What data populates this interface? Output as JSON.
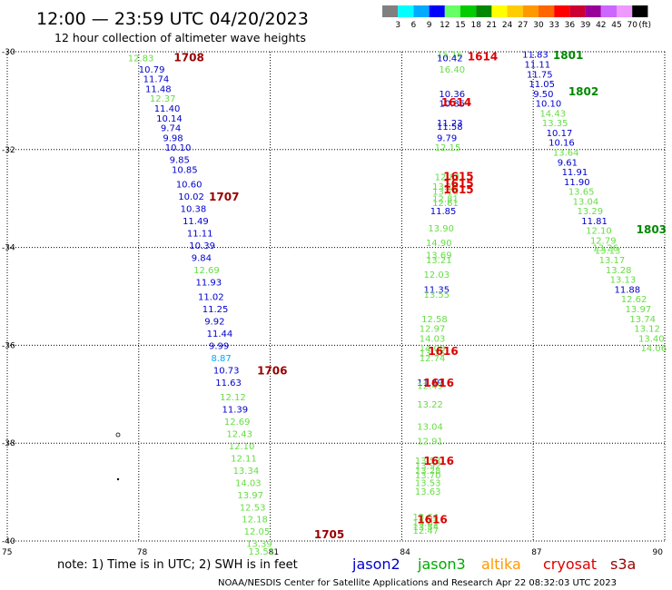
{
  "header": {
    "title": "12:00  —  23:59  UTC  04/20/2023",
    "subtitle": "12 hour collection of altimeter wave heights"
  },
  "color_scale": {
    "labels": [
      "3",
      "6",
      "9",
      "12",
      "15",
      "18",
      "21",
      "24",
      "27",
      "30",
      "33",
      "36",
      "39",
      "42",
      "45",
      "70"
    ],
    "unit": "(ft)",
    "colors": [
      "#808080",
      "#00ffff",
      "#00aaff",
      "#0000ff",
      "#66ff66",
      "#00cc00",
      "#008800",
      "#ffff00",
      "#ffcc00",
      "#ff9900",
      "#ff6600",
      "#ff0000",
      "#cc0033",
      "#990099",
      "#cc66ff",
      "#ee99ff",
      "#000000"
    ]
  },
  "footer": {
    "note": "note:  1)  Time is in UTC;  2)  SWH is in feet",
    "credit": "NOAA/NESDIS  Center  for  Satellite  Applications  and  Research     Apr 22 08:32:03 UTC 2023",
    "missions": [
      {
        "name": "jason2",
        "color": "#0000cc"
      },
      {
        "name": "jason3",
        "color": "#00aa00"
      },
      {
        "name": "altika",
        "color": "#ff9900"
      },
      {
        "name": "cryosat",
        "color": "#dd0000"
      },
      {
        "name": "s3a",
        "color": "#990000"
      }
    ]
  },
  "chart_data": {
    "type": "scatter",
    "title": "12 hour collection of altimeter wave heights",
    "x_ticks": [
      "75",
      "78",
      "81",
      "84",
      "87",
      "90"
    ],
    "y_ticks": [
      "-30",
      "-32",
      "-34",
      "-36",
      "-38",
      "-40"
    ],
    "xlim": [
      75,
      90
    ],
    "ylim": [
      -40,
      -30
    ],
    "grid": true,
    "pass_labels": [
      {
        "text": "1708",
        "lon": 78.8,
        "lat": -30.1,
        "color": "#990000"
      },
      {
        "text": "1707",
        "lon": 79.6,
        "lat": -32.95,
        "color": "#990000"
      },
      {
        "text": "1706",
        "lon": 80.7,
        "lat": -36.5,
        "color": "#990000"
      },
      {
        "text": "1705",
        "lon": 82.0,
        "lat": -39.85,
        "color": "#990000"
      },
      {
        "text": "1614",
        "lon": 85.5,
        "lat": -30.08,
        "color": "#dd0000"
      },
      {
        "text": "1614",
        "lon": 84.9,
        "lat": -31.02,
        "color": "#dd0000"
      },
      {
        "text": "1615",
        "lon": 84.95,
        "lat": -32.53,
        "color": "#dd0000"
      },
      {
        "text": "1615",
        "lon": 84.95,
        "lat": -32.68,
        "color": "#dd0000"
      },
      {
        "text": "1615",
        "lon": 84.95,
        "lat": -32.8,
        "color": "#dd0000"
      },
      {
        "text": "1616",
        "lon": 84.6,
        "lat": -36.1,
        "color": "#dd0000"
      },
      {
        "text": "1616",
        "lon": 84.5,
        "lat": -36.75,
        "color": "#dd0000"
      },
      {
        "text": "1616",
        "lon": 84.5,
        "lat": -38.35,
        "color": "#dd0000"
      },
      {
        "text": "1616",
        "lon": 84.35,
        "lat": -39.55,
        "color": "#dd0000"
      },
      {
        "text": "1801",
        "lon": 87.45,
        "lat": -30.06,
        "color": "#008800"
      },
      {
        "text": "1802",
        "lon": 87.8,
        "lat": -30.8,
        "color": "#008800"
      },
      {
        "text": "1803",
        "lon": 89.35,
        "lat": -33.62,
        "color": "#008800"
      }
    ],
    "series": [
      {
        "name": "s3a",
        "points": [
          {
            "lon": 77.75,
            "lat": -30.12,
            "swh": "12.83",
            "color": "#66dd44"
          },
          {
            "lon": 78.0,
            "lat": -30.35,
            "swh": "10.79",
            "color": "#0000cc"
          },
          {
            "lon": 78.1,
            "lat": -30.55,
            "swh": "11.74",
            "color": "#0000cc"
          },
          {
            "lon": 78.15,
            "lat": -30.75,
            "swh": "11.48",
            "color": "#0000cc"
          },
          {
            "lon": 78.25,
            "lat": -30.95,
            "swh": "12.37",
            "color": "#66dd44"
          },
          {
            "lon": 78.35,
            "lat": -31.15,
            "swh": "11.40",
            "color": "#0000cc"
          },
          {
            "lon": 78.4,
            "lat": -31.35,
            "swh": "10.14",
            "color": "#0000cc"
          },
          {
            "lon": 78.5,
            "lat": -31.55,
            "swh": "9.74",
            "color": "#0000cc"
          },
          {
            "lon": 78.55,
            "lat": -31.75,
            "swh": "9.98",
            "color": "#0000cc"
          },
          {
            "lon": 78.6,
            "lat": -31.95,
            "swh": "10.10",
            "color": "#0000cc"
          },
          {
            "lon": 78.7,
            "lat": -32.2,
            "swh": "9.85",
            "color": "#0000cc"
          },
          {
            "lon": 78.75,
            "lat": -32.4,
            "swh": "10.85",
            "color": "#0000cc"
          },
          {
            "lon": 78.85,
            "lat": -32.7,
            "swh": "10.60",
            "color": "#0000cc"
          },
          {
            "lon": 78.9,
            "lat": -32.95,
            "swh": "10.02",
            "color": "#0000cc"
          },
          {
            "lon": 78.95,
            "lat": -33.2,
            "swh": "10.38",
            "color": "#0000cc"
          },
          {
            "lon": 79.0,
            "lat": -33.45,
            "swh": "11.49",
            "color": "#0000cc"
          },
          {
            "lon": 79.1,
            "lat": -33.7,
            "swh": "11.11",
            "color": "#0000cc"
          },
          {
            "lon": 79.15,
            "lat": -33.95,
            "swh": "10.39",
            "color": "#0000cc"
          },
          {
            "lon": 79.2,
            "lat": -34.2,
            "swh": "9.84",
            "color": "#0000cc"
          },
          {
            "lon": 79.25,
            "lat": -34.45,
            "swh": "12.69",
            "color": "#66dd44"
          },
          {
            "lon": 79.3,
            "lat": -34.7,
            "swh": "11.93",
            "color": "#0000cc"
          },
          {
            "lon": 79.35,
            "lat": -35.0,
            "swh": "11.02",
            "color": "#0000cc"
          },
          {
            "lon": 79.45,
            "lat": -35.25,
            "swh": "11.25",
            "color": "#0000cc"
          },
          {
            "lon": 79.5,
            "lat": -35.5,
            "swh": "9.92",
            "color": "#0000cc"
          },
          {
            "lon": 79.55,
            "lat": -35.75,
            "swh": "11.44",
            "color": "#0000cc"
          },
          {
            "lon": 79.6,
            "lat": -36.0,
            "swh": "9.99",
            "color": "#0000cc"
          },
          {
            "lon": 79.65,
            "lat": -36.25,
            "swh": "8.87",
            "color": "#00aaff"
          },
          {
            "lon": 79.7,
            "lat": -36.5,
            "swh": "10.73",
            "color": "#0000cc"
          },
          {
            "lon": 79.75,
            "lat": -36.75,
            "swh": "11.63",
            "color": "#0000cc"
          },
          {
            "lon": 79.85,
            "lat": -37.05,
            "swh": "12.12",
            "color": "#66dd44"
          },
          {
            "lon": 79.9,
            "lat": -37.3,
            "swh": "11.39",
            "color": "#0000cc"
          },
          {
            "lon": 79.95,
            "lat": -37.55,
            "swh": "12.69",
            "color": "#66dd44"
          },
          {
            "lon": 80.0,
            "lat": -37.8,
            "swh": "12.43",
            "color": "#66dd44"
          },
          {
            "lon": 80.05,
            "lat": -38.05,
            "swh": "12.10",
            "color": "#66dd44"
          },
          {
            "lon": 80.1,
            "lat": -38.3,
            "swh": "12.11",
            "color": "#66dd44"
          },
          {
            "lon": 80.15,
            "lat": -38.55,
            "swh": "13.34",
            "color": "#66dd44"
          },
          {
            "lon": 80.2,
            "lat": -38.8,
            "swh": "14.03",
            "color": "#66dd44"
          },
          {
            "lon": 80.25,
            "lat": -39.05,
            "swh": "13.97",
            "color": "#66dd44"
          },
          {
            "lon": 80.3,
            "lat": -39.3,
            "swh": "12.53",
            "color": "#66dd44"
          },
          {
            "lon": 80.35,
            "lat": -39.55,
            "swh": "12.18",
            "color": "#66dd44"
          },
          {
            "lon": 80.4,
            "lat": -39.8,
            "swh": "12.05",
            "color": "#66dd44"
          },
          {
            "lon": 80.45,
            "lat": -40.05,
            "swh": "13.39",
            "color": "#66dd44"
          },
          {
            "lon": 80.5,
            "lat": -40.2,
            "swh": "13.52",
            "color": "#66dd44"
          }
        ]
      },
      {
        "name": "cryosat",
        "points": [
          {
            "lon": 84.8,
            "lat": -30.05,
            "swh": "15.16",
            "color": "#66dd44"
          },
          {
            "lon": 84.8,
            "lat": -30.12,
            "swh": "10.42",
            "color": "#0000cc"
          },
          {
            "lon": 84.85,
            "lat": -30.35,
            "swh": "16.40",
            "color": "#66dd44"
          },
          {
            "lon": 84.85,
            "lat": -30.85,
            "swh": "10.36",
            "color": "#0000cc"
          },
          {
            "lon": 84.85,
            "lat": -31.05,
            "swh": "10.85",
            "color": "#0000cc"
          },
          {
            "lon": 84.8,
            "lat": -31.45,
            "swh": "11.23",
            "color": "#0000cc"
          },
          {
            "lon": 84.8,
            "lat": -31.52,
            "swh": "11.58",
            "color": "#0000cc"
          },
          {
            "lon": 84.8,
            "lat": -31.75,
            "swh": "9.79",
            "color": "#0000cc"
          },
          {
            "lon": 84.75,
            "lat": -31.95,
            "swh": "12.15",
            "color": "#66dd44"
          },
          {
            "lon": 84.75,
            "lat": -32.55,
            "swh": "12.81",
            "color": "#66dd44"
          },
          {
            "lon": 84.7,
            "lat": -32.75,
            "swh": "13.15",
            "color": "#66dd44"
          },
          {
            "lon": 84.7,
            "lat": -32.85,
            "swh": "13.16",
            "color": "#66dd44"
          },
          {
            "lon": 84.7,
            "lat": -33.0,
            "swh": "12.81",
            "color": "#66dd44"
          },
          {
            "lon": 84.7,
            "lat": -33.08,
            "swh": "12.61",
            "color": "#66dd44"
          },
          {
            "lon": 84.65,
            "lat": -33.25,
            "swh": "11.85",
            "color": "#0000cc"
          },
          {
            "lon": 84.6,
            "lat": -33.6,
            "swh": "13.90",
            "color": "#66dd44"
          },
          {
            "lon": 84.55,
            "lat": -33.9,
            "swh": "14.90",
            "color": "#66dd44"
          },
          {
            "lon": 84.55,
            "lat": -34.15,
            "swh": "13.69",
            "color": "#66dd44"
          },
          {
            "lon": 84.55,
            "lat": -34.25,
            "swh": "13.21",
            "color": "#66dd44"
          },
          {
            "lon": 84.5,
            "lat": -34.55,
            "swh": "12.03",
            "color": "#66dd44"
          },
          {
            "lon": 84.5,
            "lat": -34.85,
            "swh": "11.35",
            "color": "#0000cc"
          },
          {
            "lon": 84.5,
            "lat": -34.95,
            "swh": "13.55",
            "color": "#66dd44"
          },
          {
            "lon": 84.45,
            "lat": -35.45,
            "swh": "12.58",
            "color": "#66dd44"
          },
          {
            "lon": 84.4,
            "lat": -35.65,
            "swh": "12.97",
            "color": "#66dd44"
          },
          {
            "lon": 84.4,
            "lat": -35.85,
            "swh": "14.03",
            "color": "#66dd44"
          },
          {
            "lon": 84.4,
            "lat": -36.05,
            "swh": "14.08",
            "color": "#66dd44"
          },
          {
            "lon": 84.4,
            "lat": -36.15,
            "swh": "13.15",
            "color": "#66dd44"
          },
          {
            "lon": 84.4,
            "lat": -36.25,
            "swh": "12.74",
            "color": "#66dd44"
          },
          {
            "lon": 84.35,
            "lat": -36.75,
            "swh": "11.49",
            "color": "#0000cc"
          },
          {
            "lon": 84.35,
            "lat": -36.82,
            "swh": "12.49",
            "color": "#66dd44"
          },
          {
            "lon": 84.35,
            "lat": -37.2,
            "swh": "13.22",
            "color": "#66dd44"
          },
          {
            "lon": 84.35,
            "lat": -37.65,
            "swh": "13.04",
            "color": "#66dd44"
          },
          {
            "lon": 84.35,
            "lat": -37.95,
            "swh": "12.91",
            "color": "#66dd44"
          },
          {
            "lon": 84.3,
            "lat": -38.35,
            "swh": "13.53",
            "color": "#66dd44"
          },
          {
            "lon": 84.3,
            "lat": -38.45,
            "swh": "13.92",
            "color": "#66dd44"
          },
          {
            "lon": 84.3,
            "lat": -38.55,
            "swh": "13.28",
            "color": "#66dd44"
          },
          {
            "lon": 84.3,
            "lat": -38.65,
            "swh": "13.70",
            "color": "#66dd44"
          },
          {
            "lon": 84.3,
            "lat": -38.8,
            "swh": "13.53",
            "color": "#66dd44"
          },
          {
            "lon": 84.3,
            "lat": -38.98,
            "swh": "13.63",
            "color": "#66dd44"
          },
          {
            "lon": 84.25,
            "lat": -39.5,
            "swh": "13.64",
            "color": "#66dd44"
          },
          {
            "lon": 84.25,
            "lat": -39.62,
            "swh": "13.02",
            "color": "#66dd44"
          },
          {
            "lon": 84.25,
            "lat": -39.7,
            "swh": "13.84",
            "color": "#66dd44"
          },
          {
            "lon": 84.25,
            "lat": -39.78,
            "swh": "12.47",
            "color": "#66dd44"
          }
        ]
      },
      {
        "name": "jason3",
        "points": [
          {
            "lon": 86.75,
            "lat": -30.05,
            "swh": "11.83",
            "color": "#0000cc"
          },
          {
            "lon": 86.8,
            "lat": -30.25,
            "swh": "11.11",
            "color": "#0000cc"
          },
          {
            "lon": 86.85,
            "lat": -30.45,
            "swh": "11.75",
            "color": "#0000cc"
          },
          {
            "lon": 86.9,
            "lat": -30.65,
            "swh": "11.05",
            "color": "#0000cc"
          },
          {
            "lon": 87.0,
            "lat": -30.85,
            "swh": "9.50",
            "color": "#0000cc"
          },
          {
            "lon": 87.05,
            "lat": -31.05,
            "swh": "10.10",
            "color": "#0000cc"
          },
          {
            "lon": 87.15,
            "lat": -31.25,
            "swh": "14.43",
            "color": "#66dd44"
          },
          {
            "lon": 87.2,
            "lat": -31.45,
            "swh": "13.35",
            "color": "#66dd44"
          },
          {
            "lon": 87.3,
            "lat": -31.65,
            "swh": "10.17",
            "color": "#0000cc"
          },
          {
            "lon": 87.35,
            "lat": -31.85,
            "swh": "10.16",
            "color": "#0000cc"
          },
          {
            "lon": 87.45,
            "lat": -32.05,
            "swh": "13.64",
            "color": "#66dd44"
          },
          {
            "lon": 87.55,
            "lat": -32.25,
            "swh": "9.61",
            "color": "#0000cc"
          },
          {
            "lon": 87.65,
            "lat": -32.45,
            "swh": "11.91",
            "color": "#0000cc"
          },
          {
            "lon": 87.7,
            "lat": -32.65,
            "swh": "11.90",
            "color": "#0000cc"
          },
          {
            "lon": 87.8,
            "lat": -32.85,
            "swh": "13.65",
            "color": "#66dd44"
          },
          {
            "lon": 87.9,
            "lat": -33.05,
            "swh": "13.04",
            "color": "#66dd44"
          },
          {
            "lon": 88.0,
            "lat": -33.25,
            "swh": "13.29",
            "color": "#66dd44"
          },
          {
            "lon": 88.1,
            "lat": -33.45,
            "swh": "11.81",
            "color": "#0000cc"
          },
          {
            "lon": 88.2,
            "lat": -33.65,
            "swh": "12.10",
            "color": "#66dd44"
          },
          {
            "lon": 88.3,
            "lat": -33.85,
            "swh": "12.79",
            "color": "#66dd44"
          },
          {
            "lon": 88.4,
            "lat": -34.05,
            "swh": "13.13",
            "color": "#66dd44"
          },
          {
            "lon": 88.35,
            "lat": -34.0,
            "swh": "13.26",
            "color": "#66dd44"
          },
          {
            "lon": 88.5,
            "lat": -34.25,
            "swh": "13.17",
            "color": "#66dd44"
          },
          {
            "lon": 88.65,
            "lat": -34.45,
            "swh": "13.28",
            "color": "#66dd44"
          },
          {
            "lon": 88.75,
            "lat": -34.65,
            "swh": "13.13",
            "color": "#66dd44"
          },
          {
            "lon": 88.85,
            "lat": -34.85,
            "swh": "11.88",
            "color": "#0000cc"
          },
          {
            "lon": 89.0,
            "lat": -35.05,
            "swh": "12.62",
            "color": "#66dd44"
          },
          {
            "lon": 89.1,
            "lat": -35.25,
            "swh": "13.97",
            "color": "#66dd44"
          },
          {
            "lon": 89.2,
            "lat": -35.45,
            "swh": "13.74",
            "color": "#66dd44"
          },
          {
            "lon": 89.3,
            "lat": -35.65,
            "swh": "13.12",
            "color": "#66dd44"
          },
          {
            "lon": 89.4,
            "lat": -35.85,
            "swh": "13.40",
            "color": "#66dd44"
          },
          {
            "lon": 89.45,
            "lat": -36.05,
            "swh": "14.06",
            "color": "#66dd44"
          }
        ]
      }
    ]
  }
}
